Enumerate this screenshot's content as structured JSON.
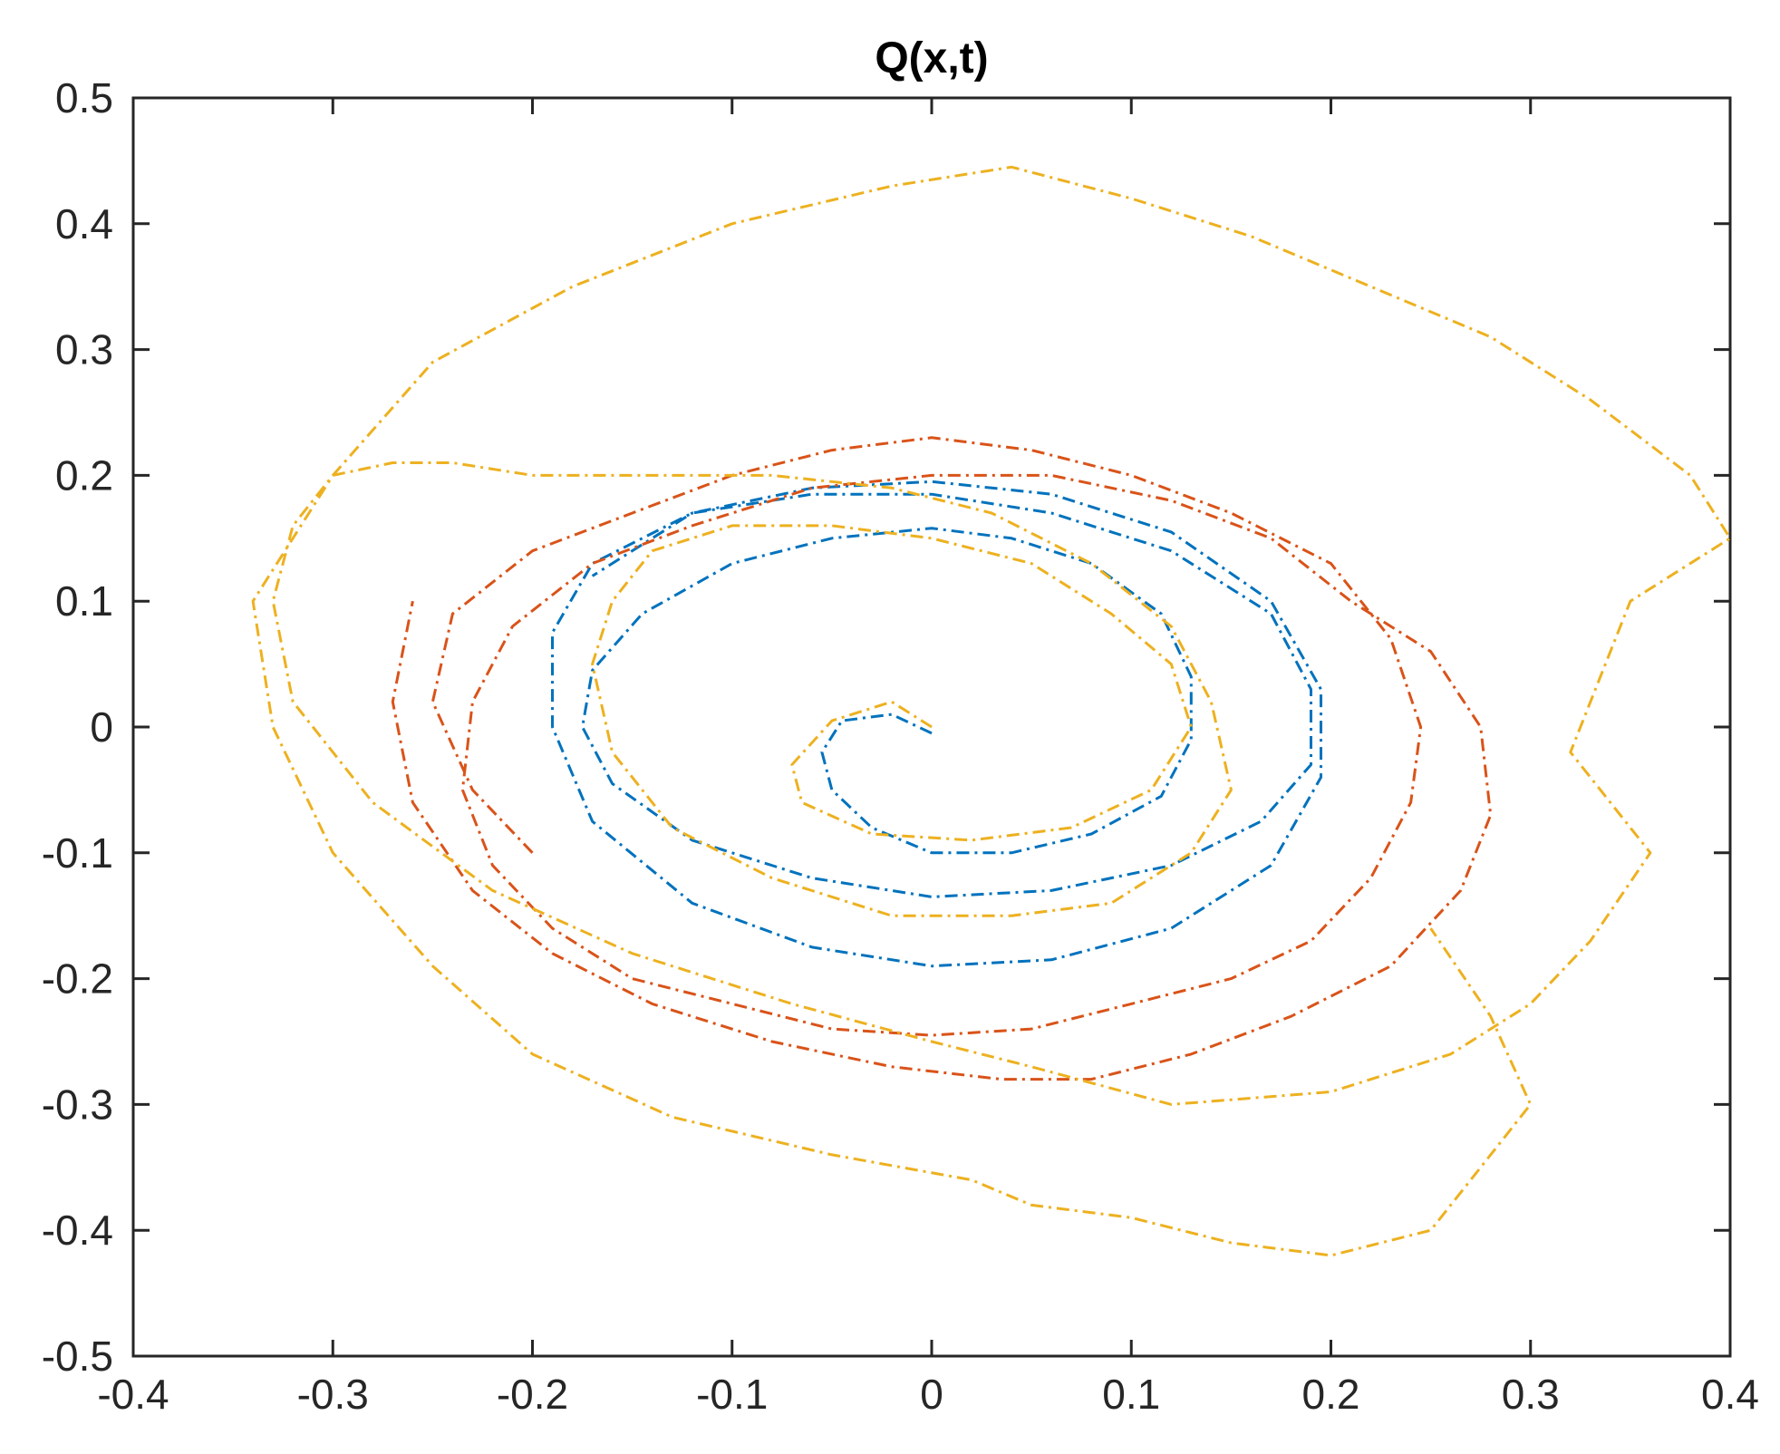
{
  "chart_data": {
    "type": "line",
    "title": "Q(x,t)",
    "xlabel": "",
    "ylabel": "",
    "xlim": [
      -0.4,
      0.4
    ],
    "ylim": [
      -0.5,
      0.5
    ],
    "xticks": [
      "-0.4",
      "-0.3",
      "-0.2",
      "-0.1",
      "0",
      "0.1",
      "0.2",
      "0.3",
      "0.4"
    ],
    "yticks": [
      "0.5",
      "0.4",
      "0.3",
      "0.2",
      "0.1",
      "0",
      "-0.1",
      "-0.2",
      "-0.3",
      "-0.4",
      "-0.5"
    ],
    "grid": false,
    "line_style": "dash-dot",
    "series": [
      {
        "color": "#0072bd",
        "x": [
          0,
          -0.02,
          -0.045,
          -0.055,
          -0.05,
          -0.03,
          0,
          0.04,
          0.08,
          0.115,
          0.13,
          0.13,
          0.115,
          0.08,
          0.04,
          0,
          -0.05,
          -0.1,
          -0.145,
          -0.17,
          -0.175,
          -0.16,
          -0.12,
          -0.06,
          0,
          0.06,
          0.12,
          0.165,
          0.19,
          0.19,
          0.17,
          0.12,
          0.06,
          0,
          -0.06,
          -0.12,
          -0.17,
          -0.19,
          -0.19,
          -0.17,
          -0.12,
          -0.06,
          0,
          0.06,
          0.12,
          0.17,
          0.195,
          0.195,
          0.17,
          0.12,
          0.06,
          0,
          -0.06,
          -0.12,
          -0.17
        ],
        "y": [
          -0.005,
          0.01,
          0.005,
          -0.02,
          -0.05,
          -0.08,
          -0.1,
          -0.1,
          -0.085,
          -0.055,
          -0.01,
          0.04,
          0.09,
          0.13,
          0.15,
          0.158,
          0.15,
          0.13,
          0.09,
          0.045,
          0,
          -0.045,
          -0.09,
          -0.12,
          -0.135,
          -0.13,
          -0.11,
          -0.075,
          -0.03,
          0.03,
          0.09,
          0.14,
          0.17,
          0.185,
          0.185,
          0.17,
          0.13,
          0.075,
          0,
          -0.075,
          -0.14,
          -0.175,
          -0.19,
          -0.185,
          -0.16,
          -0.11,
          -0.04,
          0.03,
          0.1,
          0.155,
          0.185,
          0.195,
          0.19,
          0.17,
          0.12
        ]
      },
      {
        "color": "#d95319",
        "x": [
          -0.2,
          -0.23,
          -0.25,
          -0.24,
          -0.2,
          -0.15,
          -0.1,
          -0.05,
          0,
          0.05,
          0.1,
          0.15,
          0.2,
          0.23,
          0.245,
          0.24,
          0.22,
          0.19,
          0.15,
          0.1,
          0.05,
          0,
          -0.05,
          -0.1,
          -0.15,
          -0.19,
          -0.22,
          -0.235,
          -0.23,
          -0.21,
          -0.17,
          -0.12,
          -0.06,
          0,
          0.06,
          0.12,
          0.17,
          0.21,
          0.25,
          0.275,
          0.28,
          0.265,
          0.23,
          0.18,
          0.13,
          0.08,
          0.035,
          -0.02,
          -0.08,
          -0.14,
          -0.19,
          -0.23,
          -0.26,
          -0.27,
          -0.26
        ],
        "y": [
          -0.1,
          -0.05,
          0.02,
          0.09,
          0.14,
          0.17,
          0.2,
          0.22,
          0.23,
          0.22,
          0.2,
          0.17,
          0.13,
          0.07,
          0,
          -0.06,
          -0.12,
          -0.17,
          -0.2,
          -0.22,
          -0.24,
          -0.245,
          -0.24,
          -0.22,
          -0.2,
          -0.16,
          -0.11,
          -0.05,
          0.02,
          0.08,
          0.13,
          0.16,
          0.19,
          0.2,
          0.2,
          0.18,
          0.15,
          0.1,
          0.06,
          0,
          -0.07,
          -0.13,
          -0.19,
          -0.23,
          -0.26,
          -0.28,
          -0.28,
          -0.27,
          -0.25,
          -0.22,
          -0.18,
          -0.13,
          -0.06,
          0.02,
          0.1
        ]
      },
      {
        "color": "#edb120",
        "x": [
          0,
          -0.02,
          -0.05,
          -0.07,
          -0.065,
          -0.03,
          0.02,
          0.07,
          0.11,
          0.13,
          0.12,
          0.09,
          0.05,
          0.0,
          -0.05,
          -0.1,
          -0.14,
          -0.16,
          -0.17,
          -0.16,
          -0.13,
          -0.08,
          -0.02,
          0.04,
          0.09,
          0.13,
          0.15,
          0.14,
          0.12,
          0.08,
          0.03,
          -0.02,
          -0.08,
          -0.14,
          -0.2,
          -0.24,
          -0.27,
          -0.3,
          -0.32,
          -0.33,
          -0.32,
          -0.28,
          -0.22,
          -0.15,
          -0.07,
          0.0,
          0.05,
          0.12,
          0.2,
          0.26,
          0.3,
          0.33,
          0.36,
          0.32,
          0.35,
          0.4,
          0.38,
          0.33,
          0.28,
          0.22,
          0.16,
          0.1,
          0.04,
          -0.02,
          -0.1,
          -0.18,
          -0.25,
          -0.3,
          -0.34,
          -0.33,
          -0.3,
          -0.25,
          -0.2,
          -0.13,
          -0.05,
          0.02,
          0.05,
          0.1,
          0.15,
          0.2,
          0.25,
          0.27,
          0.3,
          0.28,
          0.25
        ],
        "y": [
          0.0,
          0.02,
          0.005,
          -0.03,
          -0.06,
          -0.085,
          -0.09,
          -0.08,
          -0.05,
          0.0,
          0.05,
          0.09,
          0.13,
          0.15,
          0.16,
          0.16,
          0.14,
          0.1,
          0.05,
          -0.02,
          -0.08,
          -0.12,
          -0.15,
          -0.15,
          -0.14,
          -0.1,
          -0.05,
          0.02,
          0.08,
          0.13,
          0.17,
          0.19,
          0.2,
          0.2,
          0.2,
          0.21,
          0.21,
          0.2,
          0.16,
          0.1,
          0.02,
          -0.06,
          -0.13,
          -0.18,
          -0.22,
          -0.25,
          -0.27,
          -0.3,
          -0.29,
          -0.26,
          -0.22,
          -0.17,
          -0.1,
          -0.02,
          0.1,
          0.15,
          0.2,
          0.26,
          0.31,
          0.35,
          0.39,
          0.42,
          0.445,
          0.43,
          0.4,
          0.35,
          0.29,
          0.2,
          0.1,
          0.0,
          -0.1,
          -0.19,
          -0.26,
          -0.31,
          -0.34,
          -0.36,
          -0.38,
          -0.39,
          -0.41,
          -0.42,
          -0.4,
          -0.36,
          -0.3,
          -0.23,
          -0.16
        ]
      }
    ]
  }
}
